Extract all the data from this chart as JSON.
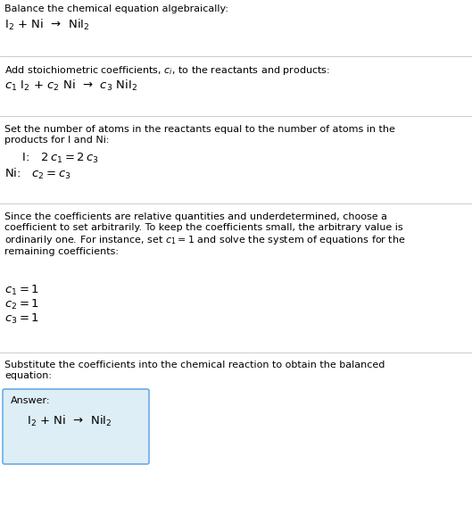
{
  "title_line": "Balance the chemical equation algebraically:",
  "equation_line": "I$_2$ + Ni  →  NiI$_2$",
  "section2_intro": "Add stoichiometric coefficients, $c_i$, to the reactants and products:",
  "section2_eq": "$c_1$ I$_2$ + $c_2$ Ni  →  $c_3$ NiI$_2$",
  "section3_intro": "Set the number of atoms in the reactants equal to the number of atoms in the\nproducts for I and Ni:",
  "section3_I": "  I:   $2\\,c_1 = 2\\,c_3$",
  "section3_Ni": "Ni:   $c_2 = c_3$",
  "section4_intro": "Since the coefficients are relative quantities and underdetermined, choose a\ncoefficient to set arbitrarily. To keep the coefficients small, the arbitrary value is\nordinarily one. For instance, set $c_1 = 1$ and solve the system of equations for the\nremaining coefficients:",
  "section4_c1": "$c_1 = 1$",
  "section4_c2": "$c_2 = 1$",
  "section4_c3": "$c_3 = 1$",
  "section5_intro": "Substitute the coefficients into the chemical reaction to obtain the balanced\nequation:",
  "answer_label": "Answer:",
  "answer_eq": "I$_2$ + Ni  →  NiI$_2$",
  "bg_color": "#ffffff",
  "text_color": "#000000",
  "box_facecolor": "#ddeef6",
  "box_edgecolor": "#6aabe6",
  "sep_color": "#cccccc",
  "fs_body": 8.0,
  "fs_eq": 9.5,
  "fig_w": 5.29,
  "fig_h": 5.67,
  "dpi": 100
}
